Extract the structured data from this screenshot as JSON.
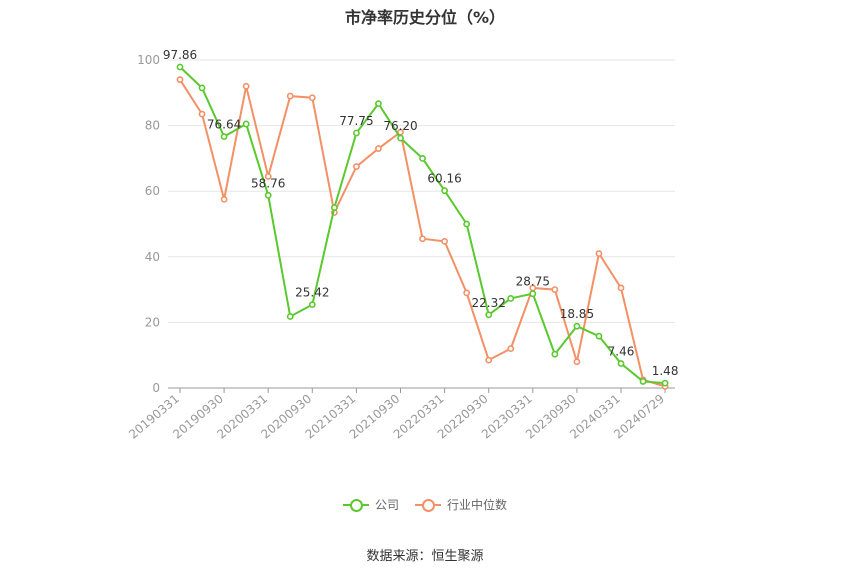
{
  "title": "市净率历史分位（%）",
  "source": "数据来源：恒生聚源",
  "legend": [
    {
      "label": "公司",
      "color": "#5ac92e"
    },
    {
      "label": "行业中位数",
      "color": "#f39066"
    }
  ],
  "chart_data": {
    "type": "line",
    "ylim": [
      0,
      100
    ],
    "yticks": [
      0,
      20,
      40,
      60,
      80,
      100
    ],
    "x_tick_labels": [
      "20190331",
      "20190930",
      "20200331",
      "20200930",
      "20210331",
      "20210930",
      "20220331",
      "20220930",
      "20230331",
      "20230930",
      "20240331",
      "20240729"
    ],
    "x_tick_indices": [
      0,
      2,
      4,
      6,
      8,
      10,
      12,
      14,
      16,
      18,
      20,
      22
    ],
    "grid": true,
    "legend_position": "bottom",
    "series": [
      {
        "name": "公司",
        "color": "#5ac92e",
        "values": [
          97.86,
          91.5,
          76.64,
          80.5,
          58.76,
          21.8,
          25.42,
          55.0,
          77.75,
          86.7,
          76.2,
          70.0,
          60.16,
          50.0,
          22.32,
          27.3,
          28.75,
          10.3,
          18.85,
          15.8,
          7.46,
          2.0,
          1.48
        ],
        "labels": {
          "0": "97.86",
          "2": "76.64",
          "4": "58.76",
          "6": "25.42",
          "8": "77.75",
          "10": "76.20",
          "12": "60.16",
          "14": "22.32",
          "16": "28.75",
          "18": "18.85",
          "20": "7.46",
          "22": "1.48"
        }
      },
      {
        "name": "行业中位数",
        "color": "#f39066",
        "values": [
          94.0,
          83.5,
          57.5,
          92.0,
          64.5,
          89.0,
          88.5,
          53.5,
          67.5,
          73.0,
          78.0,
          45.5,
          44.7,
          29.0,
          8.5,
          12.0,
          30.5,
          30.0,
          8.0,
          41.0,
          30.5,
          2.5,
          0.5
        ]
      }
    ]
  }
}
